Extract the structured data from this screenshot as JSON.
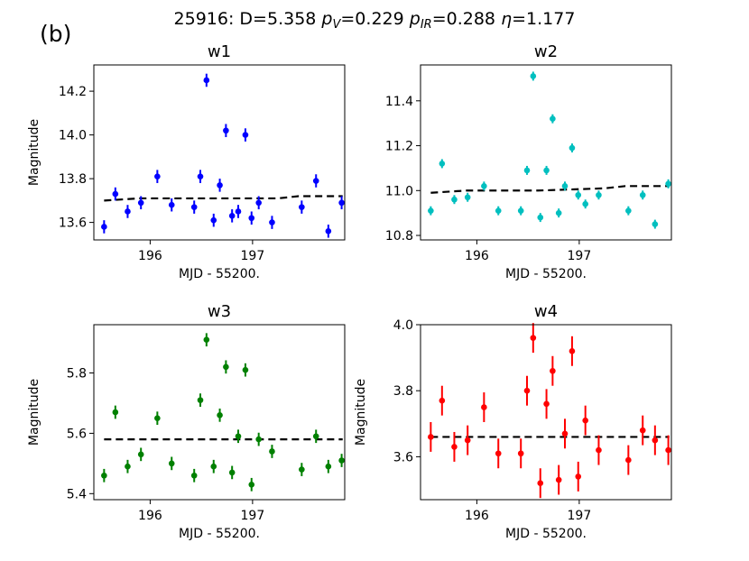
{
  "panel_label": "(b)",
  "suptitle": {
    "prefix": "25916: D=5.358",
    "pv_sym": "p",
    "pv_sub": "V",
    "pv_val": "=0.229",
    "pir_sym": "p",
    "pir_sub": "IR",
    "pir_val": "=0.288",
    "eta_sym": "η",
    "eta_val": "=1.177"
  },
  "colors": {
    "w1": "#0000ff",
    "w2": "#00bfbf",
    "w3": "#008000",
    "w4": "#ff0000",
    "model": "#000000"
  },
  "chart_data": [
    {
      "type": "scatter",
      "title": "w1",
      "xlabel": "MJD - 55200.",
      "ylabel": "Magnitude",
      "color": "#0000ff",
      "xlim": [
        195.45,
        197.9
      ],
      "ylim": [
        13.52,
        14.32
      ],
      "xticks": [
        196,
        197
      ],
      "xticklabels": [
        "196",
        "197"
      ],
      "yticks": [
        13.6,
        13.8,
        14.0,
        14.2
      ],
      "yticklabels": [
        "13.6",
        "13.8",
        "14.0",
        "14.2"
      ],
      "x": [
        195.55,
        195.66,
        195.78,
        195.91,
        196.07,
        196.21,
        196.43,
        196.49,
        196.55,
        196.62,
        196.68,
        196.74,
        196.8,
        196.86,
        196.93,
        196.99,
        197.06,
        197.19,
        197.48,
        197.62,
        197.74,
        197.87
      ],
      "y": [
        13.58,
        13.73,
        13.65,
        13.69,
        13.81,
        13.68,
        13.67,
        13.81,
        14.25,
        13.61,
        13.77,
        14.02,
        13.63,
        13.65,
        14.0,
        13.62,
        13.69,
        13.6,
        13.67,
        13.79,
        13.56,
        13.69
      ],
      "yerr": 0.03,
      "model": {
        "style": "dashed",
        "x": [
          195.55,
          195.9,
          196.6,
          197.25,
          197.45,
          197.88
        ],
        "y": [
          13.7,
          13.71,
          13.71,
          13.71,
          13.72,
          13.72
        ]
      }
    },
    {
      "type": "scatter",
      "title": "w2",
      "xlabel": "MJD - 55200.",
      "ylabel": "",
      "color": "#00bfbf",
      "xlim": [
        195.45,
        197.9
      ],
      "ylim": [
        10.78,
        11.56
      ],
      "xticks": [
        196,
        197
      ],
      "xticklabels": [
        "196",
        "197"
      ],
      "yticks": [
        10.8,
        11.0,
        11.2,
        11.4
      ],
      "yticklabels": [
        "10.8",
        "11.0",
        "11.2",
        "11.4"
      ],
      "x": [
        195.55,
        195.66,
        195.78,
        195.91,
        196.07,
        196.21,
        196.43,
        196.49,
        196.55,
        196.62,
        196.68,
        196.74,
        196.8,
        196.86,
        196.93,
        196.99,
        197.06,
        197.19,
        197.48,
        197.62,
        197.74,
        197.87
      ],
      "y": [
        10.91,
        11.12,
        10.96,
        10.97,
        11.02,
        10.91,
        10.91,
        11.09,
        11.51,
        10.88,
        11.09,
        11.32,
        10.9,
        11.02,
        11.19,
        10.98,
        10.94,
        10.98,
        10.91,
        10.98,
        10.85,
        11.03
      ],
      "yerr": 0.02,
      "model": {
        "style": "dashed",
        "x": [
          195.55,
          195.9,
          196.6,
          197.25,
          197.45,
          197.88
        ],
        "y": [
          10.99,
          11.0,
          11.0,
          11.01,
          11.02,
          11.02
        ]
      }
    },
    {
      "type": "scatter",
      "title": "w3",
      "xlabel": "MJD - 55200.",
      "ylabel": "Magnitude",
      "color": "#008000",
      "xlim": [
        195.45,
        197.9
      ],
      "ylim": [
        5.38,
        5.96
      ],
      "xticks": [
        196,
        197
      ],
      "xticklabels": [
        "196",
        "197"
      ],
      "yticks": [
        5.4,
        5.6,
        5.8
      ],
      "yticklabels": [
        "5.4",
        "5.6",
        "5.8"
      ],
      "x": [
        195.55,
        195.66,
        195.78,
        195.91,
        196.07,
        196.21,
        196.43,
        196.49,
        196.55,
        196.62,
        196.68,
        196.74,
        196.8,
        196.86,
        196.93,
        196.99,
        197.06,
        197.19,
        197.48,
        197.62,
        197.74,
        197.87
      ],
      "y": [
        5.46,
        5.67,
        5.49,
        5.53,
        5.65,
        5.5,
        5.46,
        5.71,
        5.91,
        5.49,
        5.66,
        5.82,
        5.47,
        5.59,
        5.81,
        5.43,
        5.58,
        5.54,
        5.48,
        5.59,
        5.49,
        5.51
      ],
      "yerr": 0.022,
      "model": {
        "style": "dashed",
        "x": [
          195.55,
          197.88
        ],
        "y": [
          5.58,
          5.58
        ]
      }
    },
    {
      "type": "scatter",
      "title": "w4",
      "xlabel": "MJD - 55200.",
      "ylabel": "Magnitude",
      "color": "#ff0000",
      "xlim": [
        195.45,
        197.9
      ],
      "ylim": [
        3.47,
        4.0
      ],
      "xticks": [
        196,
        197
      ],
      "xticklabels": [
        "196",
        "197"
      ],
      "yticks": [
        3.6,
        3.8,
        4.0
      ],
      "yticklabels": [
        "3.6",
        "3.8",
        "4.0"
      ],
      "x": [
        195.55,
        195.66,
        195.78,
        195.91,
        196.07,
        196.21,
        196.43,
        196.49,
        196.55,
        196.62,
        196.68,
        196.74,
        196.8,
        196.86,
        196.93,
        196.99,
        197.06,
        197.19,
        197.48,
        197.62,
        197.74,
        197.87
      ],
      "y": [
        3.66,
        3.77,
        3.63,
        3.65,
        3.75,
        3.61,
        3.61,
        3.8,
        3.96,
        3.52,
        3.76,
        3.86,
        3.53,
        3.67,
        3.92,
        3.54,
        3.71,
        3.62,
        3.59,
        3.68,
        3.65,
        3.62
      ],
      "yerr": 0.045,
      "model": {
        "style": "dashed",
        "x": [
          195.55,
          197.88
        ],
        "y": [
          3.66,
          3.66
        ]
      }
    }
  ]
}
